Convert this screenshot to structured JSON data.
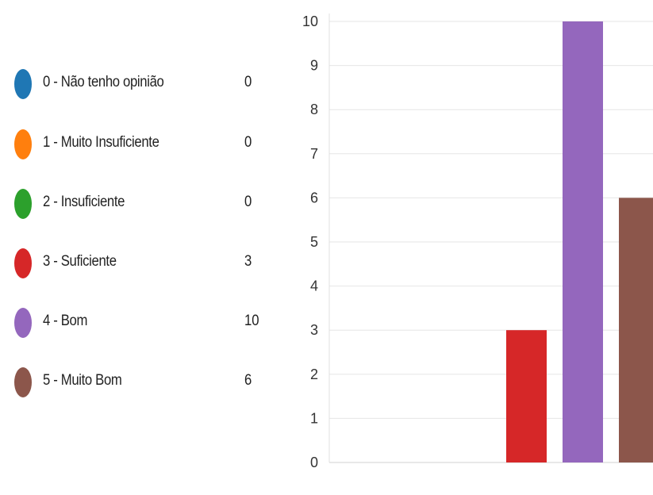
{
  "chart_data": {
    "type": "bar",
    "categories": [
      "0 - Não tenho opinião",
      "1 - Muito Insuficiente",
      "2 - Insuficiente",
      "3 - Suficiente",
      "4 - Bom",
      "5 - Muito Bom"
    ],
    "values": [
      0,
      0,
      0,
      3,
      10,
      6
    ],
    "colors": [
      "#1f77b4",
      "#ff7f0e",
      "#2ca02c",
      "#d62728",
      "#9467bd",
      "#8c564b"
    ],
    "ylim": [
      0,
      10
    ],
    "yticks": [
      "0",
      "1",
      "2",
      "3",
      "4",
      "5",
      "6",
      "7",
      "8",
      "9",
      "10"
    ],
    "grid": true,
    "legend_position": "left"
  },
  "legend": {
    "items": [
      {
        "label": "0 - Não tenho opinião",
        "count": "0",
        "color": "#1f77b4"
      },
      {
        "label": "1 - Muito Insuficiente",
        "count": "0",
        "color": "#ff7f0e"
      },
      {
        "label": "2 - Insuficiente",
        "count": "0",
        "color": "#2ca02c"
      },
      {
        "label": "3 - Suficiente",
        "count": "3",
        "color": "#d62728"
      },
      {
        "label": "4 - Bom",
        "count": "10",
        "color": "#9467bd"
      },
      {
        "label": "5 - Muito Bom",
        "count": "6",
        "color": "#8c564b"
      }
    ]
  }
}
